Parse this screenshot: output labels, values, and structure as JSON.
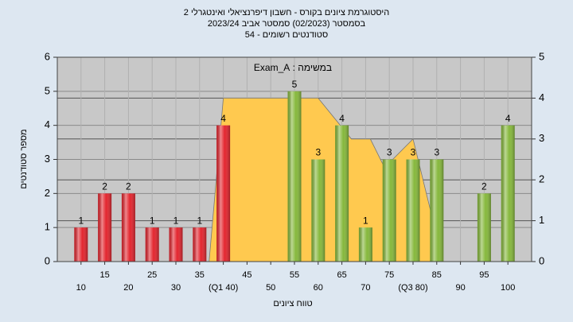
{
  "chart_data": {
    "type": "bar",
    "title_lines": [
      "היסטוגרמת ציונים בקורס - חשבון דיפרנציאלי ואינטגרלי 2",
      "בסמסטר  (02/2023)  סמסטר אביב 2023/24",
      "סטודנטים רשומים - 54"
    ],
    "annotation": "במשימה : Exam_A",
    "y_label": "מספר סטודנטים",
    "x_label": "טווח ציונים",
    "xlim": [
      5,
      105
    ],
    "xticks": [
      10,
      15,
      20,
      25,
      30,
      35,
      {
        "value": 40,
        "label": "(Q1 40)"
      },
      45,
      50,
      55,
      60,
      65,
      70,
      75,
      {
        "value": 80,
        "label": "(Q3 80)"
      },
      85,
      90,
      95,
      100
    ],
    "ylim": [
      0,
      6
    ],
    "yticks": [
      0,
      1,
      2,
      3,
      4,
      5,
      6
    ],
    "y2lim": [
      0,
      5
    ],
    "y2ticks": [
      0,
      1,
      2,
      3,
      4,
      5
    ],
    "grid": true,
    "series": [
      {
        "type": "area",
        "axis": "y2",
        "color": "#ffc94f",
        "x": [
          37,
          40,
          60,
          67,
          71,
          74,
          80,
          84
        ],
        "values": [
          0,
          4,
          4,
          3,
          3,
          2.3,
          3,
          1.1
        ]
      },
      {
        "type": "bar",
        "x": [
          10,
          15,
          20,
          25,
          30,
          35,
          40,
          55,
          60,
          65,
          70,
          75,
          80,
          85,
          95,
          100
        ],
        "values": [
          1,
          2,
          2,
          1,
          1,
          1,
          4,
          5,
          3,
          4,
          1,
          3,
          3,
          3,
          2,
          4
        ],
        "colors": [
          "#e3262f",
          "#e3262f",
          "#e3262f",
          "#e3262f",
          "#e3262f",
          "#e3262f",
          "#e3262f",
          "#86b83c",
          "#86b83c",
          "#86b83c",
          "#86b83c",
          "#86b83c",
          "#86b83c",
          "#86b83c",
          "#86b83c",
          "#86b83c"
        ]
      }
    ]
  }
}
